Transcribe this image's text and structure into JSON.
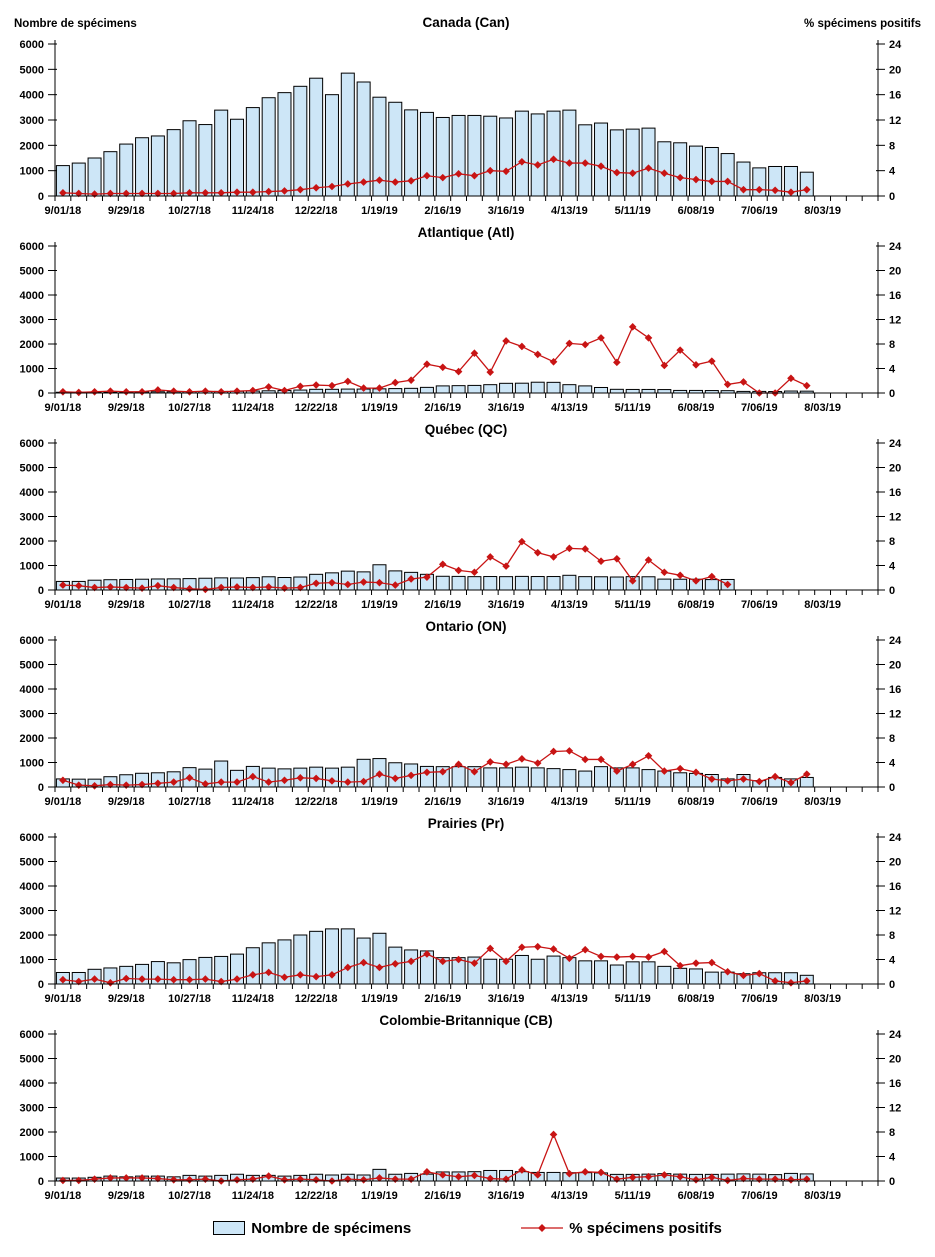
{
  "axis": {
    "left_title": "Nombre de spécimens",
    "right_title": "% spécimens positifs",
    "left_ticks": [
      0,
      1000,
      2000,
      3000,
      4000,
      5000,
      6000
    ],
    "right_ticks": [
      0,
      4,
      8,
      12,
      16,
      20,
      24
    ],
    "left_max": 6000,
    "right_max": 24,
    "x_labels": [
      "9/01/18",
      "9/29/18",
      "10/27/18",
      "11/24/18",
      "12/22/18",
      "1/19/19",
      "2/16/19",
      "3/16/19",
      "4/13/19",
      "5/11/19",
      "6/08/19",
      "7/06/19",
      "8/03/19"
    ],
    "x_label_every": 4,
    "slots": 52,
    "grid": "off",
    "legend_position": "bottom"
  },
  "legend": {
    "bars": "Nombre de spécimens",
    "line": "% spécimens positifs"
  },
  "colors": {
    "bar_fill": "#CDE6F7",
    "bar_stroke": "#000000",
    "line_color": "#C81414"
  },
  "chart_data": [
    {
      "type": "bar+line",
      "title": "Canada (Can)",
      "bars": {
        "name": "Nombre de spécimens",
        "values": [
          1200,
          1300,
          1500,
          1750,
          2050,
          2300,
          2370,
          2620,
          2970,
          2820,
          3390,
          3030,
          3490,
          3880,
          4080,
          4330,
          4650,
          4000,
          4850,
          4500,
          3900,
          3700,
          3400,
          3300,
          3100,
          3180,
          3180,
          3150,
          3080,
          3350,
          3240,
          3350,
          3390,
          2810,
          2880,
          2610,
          2640,
          2680,
          2140,
          2100,
          1970,
          1915,
          1675,
          1340,
          1110,
          1165,
          1165,
          940
        ]
      },
      "line": {
        "name": "% spécimens positifs",
        "values": [
          0.5,
          0.4,
          0.3,
          0.4,
          0.4,
          0.4,
          0.4,
          0.4,
          0.5,
          0.5,
          0.5,
          0.6,
          0.6,
          0.7,
          0.8,
          1.0,
          1.3,
          1.5,
          1.9,
          2.2,
          2.5,
          2.2,
          2.4,
          3.2,
          2.9,
          3.5,
          3.2,
          4.0,
          3.9,
          5.4,
          4.9,
          5.8,
          5.2,
          5.2,
          4.7,
          3.7,
          3.6,
          4.4,
          3.6,
          2.9,
          2.6,
          2.3,
          2.3,
          1.0,
          1.0,
          0.9,
          0.6,
          1.0
        ]
      }
    },
    {
      "type": "bar+line",
      "title": "Atlantique (Atl)",
      "bars": {
        "name": "Nombre de spécimens",
        "values": [
          30,
          25,
          30,
          30,
          40,
          45,
          50,
          50,
          60,
          60,
          65,
          70,
          80,
          90,
          100,
          120,
          150,
          150,
          160,
          160,
          170,
          180,
          190,
          230,
          290,
          300,
          310,
          340,
          395,
          400,
          440,
          435,
          340,
          290,
          225,
          150,
          145,
          145,
          140,
          105,
          105,
          100,
          95,
          65,
          65,
          60,
          80,
          75
        ]
      },
      "line": {
        "name": "% spécimens positifs",
        "values": [
          0.2,
          0.1,
          0.2,
          0.3,
          0.2,
          0.2,
          0.5,
          0.3,
          0.2,
          0.3,
          0.2,
          0.3,
          0.4,
          1.0,
          0.4,
          1.1,
          1.3,
          1.2,
          1.9,
          0.8,
          0.8,
          1.7,
          2.1,
          4.7,
          4.2,
          3.5,
          6.5,
          3.4,
          8.5,
          7.6,
          6.3,
          5.1,
          8.1,
          7.9,
          9.0,
          5.0,
          10.8,
          9.0,
          4.5,
          7.0,
          4.6,
          5.2,
          1.4,
          1.8,
          0.0,
          0.0,
          2.4,
          1.2
        ]
      }
    },
    {
      "type": "bar+line",
      "title": "Québec (QC)",
      "bars": {
        "name": "Nombre de spécimens",
        "values": [
          350,
          350,
          400,
          420,
          430,
          440,
          450,
          455,
          465,
          480,
          495,
          490,
          505,
          540,
          510,
          530,
          640,
          700,
          770,
          740,
          1030,
          780,
          720,
          640,
          560,
          555,
          545,
          550,
          545,
          555,
          550,
          550,
          600,
          545,
          540,
          530,
          545,
          540,
          445,
          440,
          440,
          425,
          430
        ]
      },
      "line": {
        "name": "% spécimens positifs",
        "values": [
          0.8,
          0.7,
          0.4,
          0.5,
          0.4,
          0.3,
          0.7,
          0.4,
          0.2,
          0.1,
          0.4,
          0.5,
          0.4,
          0.5,
          0.3,
          0.4,
          1.1,
          1.2,
          0.9,
          1.3,
          1.2,
          0.8,
          1.8,
          2.1,
          4.2,
          3.2,
          2.9,
          5.4,
          3.9,
          7.9,
          6.1,
          5.4,
          6.8,
          6.7,
          4.7,
          5.1,
          1.5,
          4.9,
          2.9,
          2.4,
          1.5,
          2.2,
          0.9
        ]
      }
    },
    {
      "type": "bar+line",
      "title": "Ontario (ON)",
      "bars": {
        "name": "Nombre de spécimens",
        "values": [
          330,
          320,
          320,
          420,
          500,
          560,
          580,
          620,
          790,
          730,
          1060,
          680,
          840,
          770,
          740,
          770,
          810,
          770,
          810,
          1130,
          1160,
          990,
          940,
          840,
          830,
          830,
          830,
          780,
          780,
          810,
          780,
          750,
          710,
          650,
          830,
          780,
          780,
          710,
          650,
          580,
          555,
          510,
          330,
          510,
          260,
          390,
          330,
          390
        ]
      },
      "line": {
        "name": "% spécimens positifs",
        "values": [
          1.1,
          0.3,
          0.2,
          0.4,
          0.3,
          0.4,
          0.6,
          0.8,
          1.5,
          0.5,
          0.8,
          0.8,
          1.7,
          0.8,
          1.1,
          1.5,
          1.4,
          1.0,
          0.8,
          0.9,
          2.1,
          1.4,
          1.9,
          2.4,
          2.5,
          3.7,
          2.5,
          4.1,
          3.7,
          4.6,
          3.9,
          5.8,
          5.9,
          4.5,
          4.5,
          2.6,
          3.7,
          5.1,
          2.6,
          3.0,
          2.4,
          1.3,
          1.0,
          1.3,
          0.9,
          1.7,
          0.7,
          2.1
        ]
      }
    },
    {
      "type": "bar+line",
      "title": "Prairies (Pr)",
      "bars": {
        "name": "Nombre de spécimens",
        "values": [
          470,
          470,
          600,
          655,
          720,
          800,
          915,
          865,
          995,
          1085,
          1125,
          1220,
          1480,
          1680,
          1800,
          2000,
          2150,
          2250,
          2250,
          1875,
          2070,
          1505,
          1390,
          1350,
          1075,
          1075,
          1100,
          1010,
          1010,
          1165,
          1010,
          1140,
          1075,
          945,
          945,
          775,
          905,
          905,
          720,
          640,
          615,
          485,
          485,
          420,
          460,
          460,
          460,
          355
        ]
      },
      "line": {
        "name": "% spécimens positifs",
        "values": [
          0.7,
          0.4,
          0.8,
          0.2,
          0.9,
          0.8,
          0.8,
          0.7,
          0.7,
          0.8,
          0.4,
          0.8,
          1.5,
          1.9,
          1.1,
          1.5,
          1.2,
          1.5,
          2.7,
          3.5,
          2.7,
          3.3,
          3.7,
          4.9,
          3.7,
          4.0,
          3.4,
          5.8,
          3.7,
          6.0,
          6.1,
          5.7,
          4.2,
          5.6,
          4.5,
          4.4,
          4.5,
          4.4,
          5.3,
          3.0,
          3.4,
          3.5,
          2.0,
          1.4,
          1.7,
          0.5,
          0.2,
          0.5
        ]
      }
    },
    {
      "type": "bar+line",
      "title": "Colombie-Britannique (CB)",
      "bars": {
        "name": "Nombre de spécimens",
        "values": [
          120,
          120,
          150,
          200,
          170,
          200,
          200,
          170,
          230,
          200,
          230,
          275,
          230,
          230,
          200,
          230,
          275,
          245,
          275,
          245,
          475,
          275,
          310,
          280,
          370,
          370,
          380,
          430,
          430,
          380,
          350,
          350,
          340,
          340,
          330,
          270,
          270,
          280,
          300,
          280,
          270,
          270,
          280,
          290,
          280,
          260,
          310,
          290
        ]
      },
      "line": {
        "name": "% spécimens positifs",
        "values": [
          0.1,
          0.1,
          0.3,
          0.5,
          0.5,
          0.5,
          0.4,
          0.2,
          0.2,
          0.3,
          0.0,
          0.2,
          0.3,
          0.8,
          0.2,
          0.3,
          0.2,
          0.0,
          0.3,
          0.2,
          0.5,
          0.3,
          0.3,
          1.5,
          1.0,
          0.7,
          0.9,
          0.4,
          0.3,
          1.8,
          1.0,
          7.6,
          1.2,
          1.5,
          1.4,
          0.3,
          0.6,
          0.7,
          1.0,
          0.7,
          0.2,
          0.6,
          0.1,
          0.4,
          0.3,
          0.3,
          0.2,
          0.3
        ]
      }
    }
  ]
}
